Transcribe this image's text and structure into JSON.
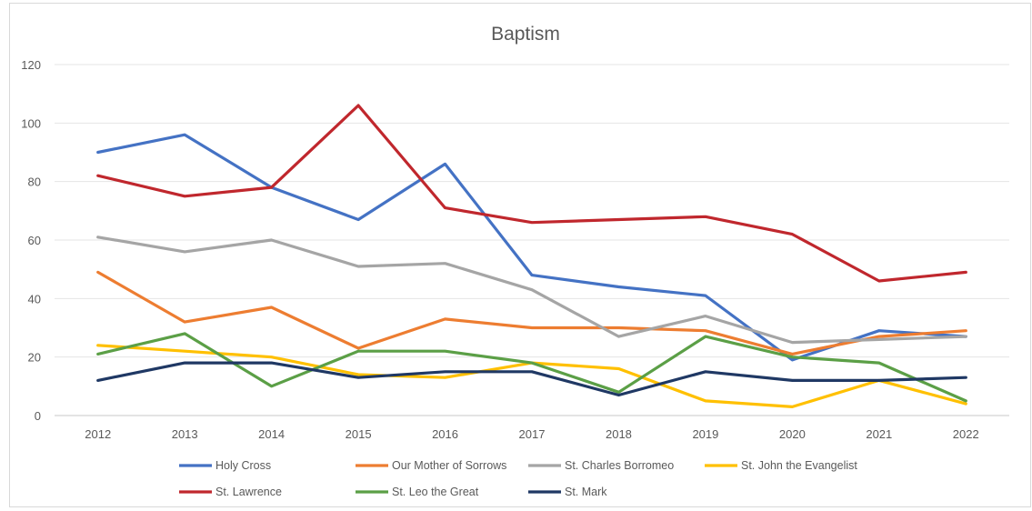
{
  "chart_data": {
    "type": "line",
    "title": "Baptism",
    "xlabel": "",
    "ylabel": "",
    "x": [
      "2012",
      "2013",
      "2014",
      "2015",
      "2016",
      "2017",
      "2018",
      "2019",
      "2020",
      "2021",
      "2022"
    ],
    "ylim": [
      0,
      120
    ],
    "yticks": [
      "0",
      "20",
      "40",
      "60",
      "80",
      "100",
      "120"
    ],
    "grid": true,
    "legend_position": "bottom",
    "series": [
      {
        "name": "Holy Cross",
        "color": "#4472c4",
        "values": [
          90,
          96,
          78,
          67,
          86,
          48,
          44,
          41,
          19,
          29,
          27
        ]
      },
      {
        "name": "Our Mother of Sorrows",
        "color": "#ed7d31",
        "values": [
          49,
          32,
          37,
          23,
          33,
          30,
          30,
          29,
          21,
          27,
          29
        ]
      },
      {
        "name": "St. Charles Borromeo",
        "color": "#a5a5a5",
        "values": [
          61,
          56,
          60,
          51,
          52,
          43,
          27,
          34,
          25,
          26,
          27
        ]
      },
      {
        "name": "St. John the Evangelist",
        "color": "#ffc000",
        "values": [
          24,
          22,
          20,
          14,
          13,
          18,
          16,
          5,
          3,
          12,
          4
        ]
      },
      {
        "name": "St. Lawrence",
        "color": "#c0272d",
        "values": [
          82,
          75,
          78,
          106,
          71,
          66,
          67,
          68,
          62,
          46,
          49
        ]
      },
      {
        "name": "St. Leo the Great",
        "color": "#5b9f46",
        "values": [
          21,
          28,
          10,
          22,
          22,
          18,
          8,
          27,
          20,
          18,
          5
        ]
      },
      {
        "name": "St. Mark",
        "color": "#1f3864",
        "values": [
          12,
          18,
          18,
          13,
          15,
          15,
          7,
          15,
          12,
          12,
          13
        ]
      }
    ]
  }
}
